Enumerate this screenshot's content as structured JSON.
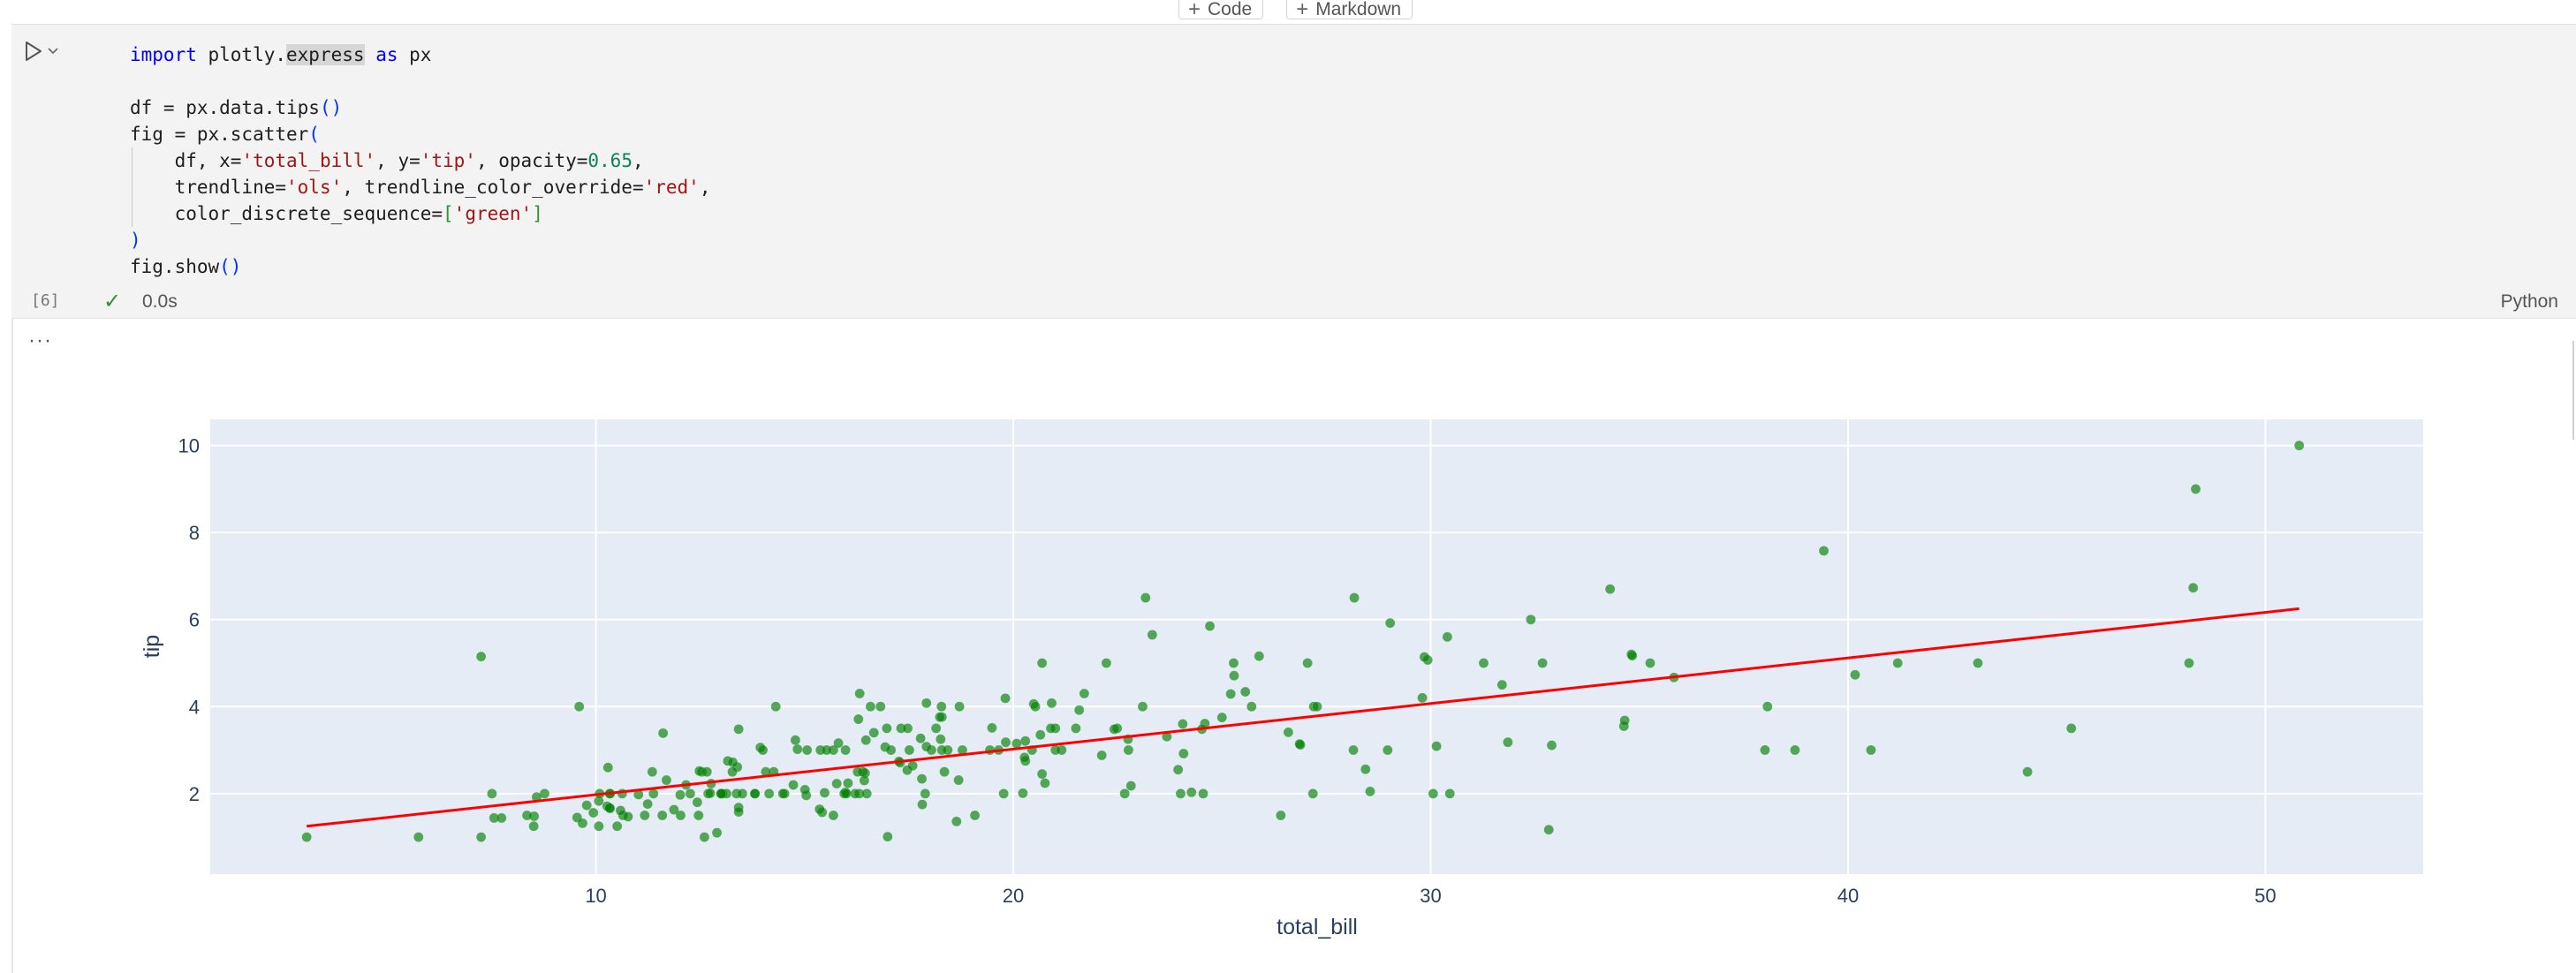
{
  "insert_bar": {
    "code_label": "Code",
    "markdown_label": "Markdown"
  },
  "cell": {
    "execution_count": "[6]",
    "status_time": "0.0s",
    "language": "Python",
    "output_ellipsis": "···"
  },
  "icons": {
    "run": "play-icon",
    "run_menu": "chevron-down-icon",
    "status": "check-icon",
    "insert": "plus-icon"
  },
  "colors": {
    "plot_bg": "#e5ecf6",
    "marker": "#008000",
    "trendline": "#ff0000",
    "axis_text": "#2a3f5f"
  },
  "chart_data": {
    "type": "scatter",
    "title": "",
    "xlabel": "total_bill",
    "ylabel": "tip",
    "xlim": [
      0.76,
      53.78
    ],
    "ylim": [
      0.15,
      10.6
    ],
    "xticks": [
      10,
      20,
      30,
      40,
      50
    ],
    "yticks": [
      2,
      4,
      6,
      8,
      10
    ],
    "grid": true,
    "marker_opacity": 0.65,
    "trendline": {
      "type": "ols",
      "x": [
        3.07,
        50.81
      ],
      "y": [
        1.25,
        6.25
      ]
    },
    "points": [
      [
        16.99,
        1.01
      ],
      [
        10.34,
        1.66
      ],
      [
        21.01,
        3.5
      ],
      [
        23.68,
        3.31
      ],
      [
        24.59,
        3.61
      ],
      [
        25.29,
        4.71
      ],
      [
        8.77,
        2.0
      ],
      [
        26.88,
        3.12
      ],
      [
        15.04,
        1.96
      ],
      [
        14.78,
        3.23
      ],
      [
        10.27,
        1.71
      ],
      [
        35.26,
        5.0
      ],
      [
        15.42,
        1.57
      ],
      [
        18.43,
        3.0
      ],
      [
        14.83,
        3.02
      ],
      [
        21.58,
        3.92
      ],
      [
        10.33,
        1.67
      ],
      [
        16.29,
        3.71
      ],
      [
        16.97,
        3.5
      ],
      [
        20.65,
        3.35
      ],
      [
        17.92,
        4.08
      ],
      [
        20.29,
        2.75
      ],
      [
        15.77,
        2.23
      ],
      [
        39.42,
        7.58
      ],
      [
        19.82,
        3.18
      ],
      [
        17.81,
        2.34
      ],
      [
        13.37,
        2.0
      ],
      [
        12.69,
        2.0
      ],
      [
        21.7,
        4.3
      ],
      [
        19.65,
        3.0
      ],
      [
        9.55,
        1.45
      ],
      [
        18.35,
        2.5
      ],
      [
        15.06,
        3.0
      ],
      [
        20.69,
        2.45
      ],
      [
        17.78,
        3.27
      ],
      [
        24.06,
        3.6
      ],
      [
        16.31,
        2.0
      ],
      [
        16.93,
        3.07
      ],
      [
        18.69,
        2.31
      ],
      [
        31.27,
        5.0
      ],
      [
        16.04,
        2.24
      ],
      [
        17.46,
        2.54
      ],
      [
        13.94,
        3.06
      ],
      [
        9.68,
        1.32
      ],
      [
        30.4,
        5.6
      ],
      [
        18.29,
        3.0
      ],
      [
        22.23,
        5.0
      ],
      [
        32.4,
        6.0
      ],
      [
        28.55,
        2.05
      ],
      [
        18.04,
        3.0
      ],
      [
        12.54,
        2.5
      ],
      [
        10.29,
        2.6
      ],
      [
        34.81,
        5.2
      ],
      [
        9.94,
        1.56
      ],
      [
        25.56,
        4.34
      ],
      [
        19.49,
        3.51
      ],
      [
        38.01,
        3.0
      ],
      [
        26.41,
        1.5
      ],
      [
        11.24,
        1.76
      ],
      [
        48.27,
        6.73
      ],
      [
        20.29,
        3.21
      ],
      [
        13.81,
        2.0
      ],
      [
        11.02,
        1.98
      ],
      [
        18.29,
        3.76
      ],
      [
        17.59,
        2.64
      ],
      [
        20.08,
        3.15
      ],
      [
        16.45,
        2.47
      ],
      [
        3.07,
        1.0
      ],
      [
        20.23,
        2.01
      ],
      [
        15.01,
        2.09
      ],
      [
        12.02,
        1.97
      ],
      [
        17.07,
        3.0
      ],
      [
        26.86,
        3.14
      ],
      [
        25.28,
        5.0
      ],
      [
        14.73,
        2.2
      ],
      [
        10.51,
        1.25
      ],
      [
        17.92,
        3.08
      ],
      [
        27.2,
        4.0
      ],
      [
        22.76,
        3.0
      ],
      [
        17.29,
        2.71
      ],
      [
        19.44,
        3.0
      ],
      [
        16.66,
        3.4
      ],
      [
        10.07,
        1.83
      ],
      [
        32.68,
        5.0
      ],
      [
        15.98,
        2.03
      ],
      [
        34.83,
        5.17
      ],
      [
        13.03,
        2.0
      ],
      [
        18.28,
        4.0
      ],
      [
        24.71,
        5.85
      ],
      [
        21.16,
        3.0
      ],
      [
        28.97,
        3.0
      ],
      [
        22.49,
        3.5
      ],
      [
        5.75,
        1.0
      ],
      [
        16.32,
        4.3
      ],
      [
        22.75,
        3.25
      ],
      [
        40.17,
        4.73
      ],
      [
        27.28,
        4.0
      ],
      [
        12.03,
        1.5
      ],
      [
        21.01,
        3.0
      ],
      [
        12.46,
        1.5
      ],
      [
        11.35,
        2.5
      ],
      [
        15.38,
        3.0
      ],
      [
        44.3,
        2.5
      ],
      [
        22.42,
        3.48
      ],
      [
        20.92,
        4.08
      ],
      [
        15.36,
        1.64
      ],
      [
        20.49,
        4.06
      ],
      [
        25.21,
        4.29
      ],
      [
        18.24,
        3.76
      ],
      [
        14.31,
        4.0
      ],
      [
        14.0,
        3.0
      ],
      [
        7.25,
        1.0
      ],
      [
        38.07,
        4.0
      ],
      [
        23.95,
        2.55
      ],
      [
        25.71,
        4.0
      ],
      [
        17.31,
        3.5
      ],
      [
        29.93,
        5.07
      ],
      [
        10.65,
        1.5
      ],
      [
        12.43,
        1.8
      ],
      [
        24.08,
        2.92
      ],
      [
        11.69,
        2.31
      ],
      [
        13.42,
        1.68
      ],
      [
        14.26,
        2.5
      ],
      [
        15.95,
        2.0
      ],
      [
        12.48,
        2.52
      ],
      [
        29.8,
        4.2
      ],
      [
        8.52,
        1.48
      ],
      [
        14.52,
        2.0
      ],
      [
        11.38,
        2.0
      ],
      [
        22.82,
        2.18
      ],
      [
        19.08,
        1.5
      ],
      [
        20.27,
        2.83
      ],
      [
        11.17,
        1.5
      ],
      [
        12.26,
        2.0
      ],
      [
        18.26,
        3.25
      ],
      [
        8.51,
        1.25
      ],
      [
        10.33,
        2.0
      ],
      [
        14.15,
        2.0
      ],
      [
        16.0,
        2.0
      ],
      [
        13.16,
        2.75
      ],
      [
        17.47,
        3.5
      ],
      [
        34.3,
        6.7
      ],
      [
        41.19,
        5.0
      ],
      [
        27.05,
        5.0
      ],
      [
        16.43,
        2.3
      ],
      [
        8.35,
        1.5
      ],
      [
        18.64,
        1.36
      ],
      [
        11.87,
        1.63
      ],
      [
        9.78,
        1.73
      ],
      [
        7.51,
        2.0
      ],
      [
        14.07,
        2.5
      ],
      [
        13.13,
        2.0
      ],
      [
        17.26,
        2.74
      ],
      [
        24.55,
        2.0
      ],
      [
        19.77,
        2.0
      ],
      [
        29.85,
        5.14
      ],
      [
        48.17,
        5.0
      ],
      [
        25.0,
        3.75
      ],
      [
        13.39,
        2.61
      ],
      [
        16.49,
        2.0
      ],
      [
        21.5,
        3.5
      ],
      [
        12.66,
        2.5
      ],
      [
        16.21,
        2.0
      ],
      [
        13.81,
        2.0
      ],
      [
        17.51,
        3.0
      ],
      [
        24.52,
        3.48
      ],
      [
        20.76,
        2.24
      ],
      [
        31.71,
        4.5
      ],
      [
        10.59,
        1.61
      ],
      [
        10.63,
        2.0
      ],
      [
        50.81,
        10.0
      ],
      [
        15.81,
        3.16
      ],
      [
        7.25,
        5.15
      ],
      [
        31.85,
        3.18
      ],
      [
        16.82,
        4.0
      ],
      [
        32.9,
        3.11
      ],
      [
        17.89,
        2.0
      ],
      [
        14.48,
        2.0
      ],
      [
        9.6,
        4.0
      ],
      [
        34.63,
        3.55
      ],
      [
        34.65,
        3.68
      ],
      [
        23.33,
        5.65
      ],
      [
        45.35,
        3.5
      ],
      [
        23.17,
        6.5
      ],
      [
        40.55,
        3.0
      ],
      [
        20.69,
        5.0
      ],
      [
        20.9,
        3.5
      ],
      [
        30.46,
        2.0
      ],
      [
        18.15,
        3.5
      ],
      [
        23.1,
        4.0
      ],
      [
        15.69,
        1.5
      ],
      [
        19.81,
        4.19
      ],
      [
        28.44,
        2.56
      ],
      [
        15.48,
        2.02
      ],
      [
        16.58,
        4.0
      ],
      [
        7.56,
        1.44
      ],
      [
        10.34,
        2.0
      ],
      [
        43.11,
        5.0
      ],
      [
        13.0,
        2.0
      ],
      [
        13.51,
        2.0
      ],
      [
        18.71,
        4.0
      ],
      [
        12.74,
        2.01
      ],
      [
        13.0,
        2.0
      ],
      [
        16.4,
        2.5
      ],
      [
        20.53,
        4.0
      ],
      [
        16.47,
        3.23
      ],
      [
        26.59,
        3.41
      ],
      [
        38.73,
        3.0
      ],
      [
        24.27,
        2.03
      ],
      [
        12.76,
        2.23
      ],
      [
        30.06,
        2.0
      ],
      [
        25.89,
        5.16
      ],
      [
        48.33,
        9.0
      ],
      [
        13.27,
        2.5
      ],
      [
        28.17,
        6.5
      ],
      [
        12.9,
        1.1
      ],
      [
        28.15,
        3.0
      ],
      [
        11.59,
        1.5
      ],
      [
        7.74,
        1.44
      ],
      [
        30.14,
        3.09
      ],
      [
        12.16,
        2.2
      ],
      [
        13.42,
        3.48
      ],
      [
        8.58,
        1.92
      ],
      [
        15.98,
        3.0
      ],
      [
        13.42,
        1.58
      ],
      [
        16.27,
        2.5
      ],
      [
        10.09,
        2.0
      ],
      [
        20.45,
        3.0
      ],
      [
        13.28,
        2.72
      ],
      [
        22.12,
        2.88
      ],
      [
        24.01,
        2.0
      ],
      [
        15.69,
        3.0
      ],
      [
        11.61,
        3.39
      ],
      [
        10.77,
        1.47
      ],
      [
        15.53,
        3.0
      ],
      [
        10.07,
        1.25
      ],
      [
        12.6,
        1.0
      ],
      [
        32.83,
        1.17
      ],
      [
        35.83,
        4.67
      ],
      [
        29.03,
        5.92
      ],
      [
        27.18,
        2.0
      ],
      [
        22.67,
        2.0
      ],
      [
        17.82,
        1.75
      ],
      [
        18.78,
        3.0
      ]
    ]
  }
}
